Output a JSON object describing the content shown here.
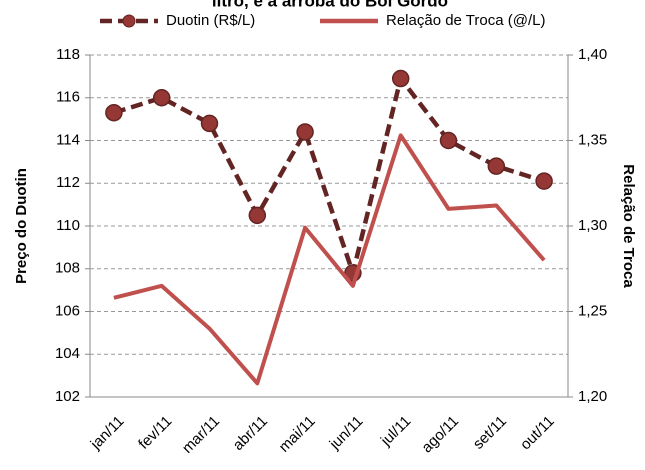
{
  "chart_data": {
    "type": "line",
    "title": "litro, e a arroba do Boi Gordo",
    "y_label": "Preço do Duotin",
    "y2_label": "Relação de Troca",
    "categories": [
      "jan/11",
      "fev/11",
      "mar/11",
      "abr/11",
      "mai/11",
      "jun/11",
      "jul/11",
      "ago/11",
      "set/11",
      "out/11"
    ],
    "series": [
      {
        "name": "Duotin (R$/L)",
        "color": "#632523",
        "marker_color": "#953735",
        "dashed": true,
        "values": [
          115.3,
          116.0,
          114.8,
          110.5,
          114.4,
          107.8,
          116.9,
          114.0,
          112.8,
          112.1
        ]
      },
      {
        "name": "Relação de Troca (@/L)",
        "color": "#c0504d",
        "axis": "y2",
        "dashed": false,
        "values": [
          1.258,
          1.265,
          1.24,
          1.208,
          1.299,
          1.265,
          1.353,
          1.31,
          1.312,
          1.28
        ]
      }
    ],
    "ylim": [
      102,
      118
    ],
    "yticks": [
      102,
      104,
      106,
      108,
      110,
      112,
      114,
      116,
      118
    ],
    "y2lim": [
      1.2,
      1.4
    ],
    "y2ticks": [
      {
        "value": 1.2,
        "label": "1,20"
      },
      {
        "value": 1.25,
        "label": "1,25"
      },
      {
        "value": 1.3,
        "label": "1,30"
      },
      {
        "value": 1.35,
        "label": "1,35"
      },
      {
        "value": 1.4,
        "label": "1,40"
      }
    ],
    "grid": true
  }
}
